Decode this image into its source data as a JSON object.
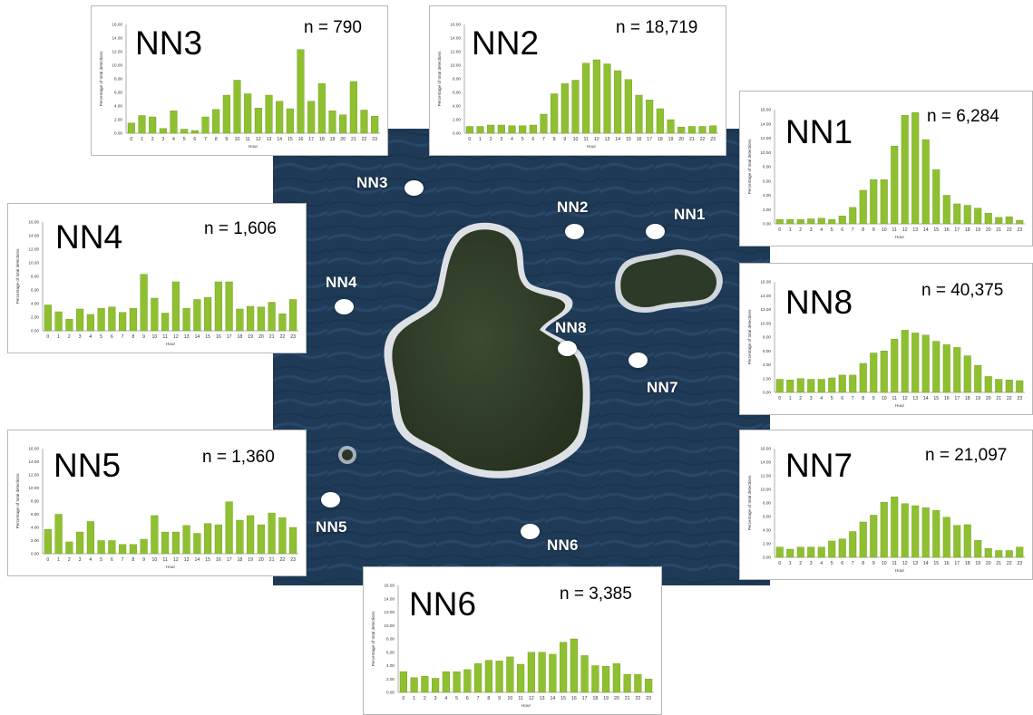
{
  "figure": {
    "sites": [
      {
        "id": "NN1",
        "label": "NN1"
      },
      {
        "id": "NN2",
        "label": "NN2"
      },
      {
        "id": "NN3",
        "label": "NN3"
      },
      {
        "id": "NN4",
        "label": "NN4"
      },
      {
        "id": "NN5",
        "label": "NN5"
      },
      {
        "id": "NN6",
        "label": "NN6"
      },
      {
        "id": "NN7",
        "label": "NN7"
      },
      {
        "id": "NN8",
        "label": "NN8"
      }
    ]
  },
  "colors": {
    "bar": "#8fc031",
    "bar_edge": "#6a9a14",
    "panel_border": "#b8b8b8"
  },
  "chart_data": [
    {
      "type": "bar",
      "title": "NN3",
      "n_label": "n = 790",
      "xlabel": "Hour",
      "ylabel": "Percentage of total detections",
      "ylim": [
        0,
        16
      ],
      "yticks": [
        "0.00",
        "2.00",
        "4.00",
        "6.00",
        "8.00",
        "10.00",
        "12.00",
        "14.00",
        "16.00"
      ],
      "categories": [
        "0",
        "1",
        "2",
        "3",
        "4",
        "5",
        "6",
        "7",
        "8",
        "9",
        "10",
        "11",
        "12",
        "13",
        "14",
        "15",
        "16",
        "17",
        "18",
        "19",
        "20",
        "21",
        "22",
        "23"
      ],
      "values": [
        1.5,
        2.6,
        2.4,
        0.7,
        3.3,
        0.6,
        0.4,
        2.4,
        3.5,
        5.6,
        7.8,
        5.8,
        3.7,
        5.6,
        4.7,
        3.6,
        12.3,
        4.7,
        7.3,
        3.3,
        2.7,
        7.6,
        3.4,
        2.5
      ]
    },
    {
      "type": "bar",
      "title": "NN2",
      "n_label": "n = 18,719",
      "xlabel": "Hour",
      "ylabel": "Percentage of total detections",
      "ylim": [
        0,
        16
      ],
      "yticks": [
        "0.00",
        "2.00",
        "4.00",
        "6.00",
        "8.00",
        "10.00",
        "12.00",
        "14.00",
        "16.00"
      ],
      "categories": [
        "0",
        "1",
        "2",
        "3",
        "4",
        "5",
        "6",
        "7",
        "8",
        "9",
        "10",
        "11",
        "12",
        "13",
        "14",
        "15",
        "16",
        "17",
        "18",
        "19",
        "20",
        "21",
        "22",
        "23"
      ],
      "values": [
        1.0,
        1.0,
        1.2,
        1.2,
        1.1,
        1.1,
        1.2,
        2.8,
        5.8,
        7.3,
        7.8,
        10.3,
        10.8,
        10.2,
        9.2,
        7.9,
        5.6,
        4.9,
        3.6,
        2.0,
        0.9,
        1.0,
        1.0,
        1.1
      ]
    },
    {
      "type": "bar",
      "title": "NN1",
      "n_label": "n = 6,284",
      "xlabel": "Hour",
      "ylabel": "Percentage of total detections",
      "ylim": [
        0,
        16
      ],
      "yticks": [
        "0.00",
        "2.00",
        "4.00",
        "6.00",
        "8.00",
        "10.00",
        "12.00",
        "14.00",
        "16.00"
      ],
      "categories": [
        "0",
        "1",
        "2",
        "3",
        "4",
        "5",
        "6",
        "7",
        "8",
        "9",
        "10",
        "11",
        "12",
        "13",
        "14",
        "15",
        "16",
        "17",
        "18",
        "19",
        "20",
        "21",
        "22",
        "23"
      ],
      "values": [
        0.6,
        0.6,
        0.6,
        0.7,
        0.8,
        0.6,
        1.1,
        2.3,
        4.7,
        6.2,
        6.2,
        10.9,
        15.2,
        15.6,
        11.8,
        7.6,
        4.0,
        2.8,
        2.6,
        2.2,
        1.5,
        0.9,
        1.0,
        0.5
      ]
    },
    {
      "type": "bar",
      "title": "NN4",
      "n_label": "n = 1,606",
      "xlabel": "Hour",
      "ylabel": "Percentage of total detections",
      "ylim": [
        0,
        16
      ],
      "yticks": [
        "0.00",
        "2.00",
        "4.00",
        "6.00",
        "8.00",
        "10.00",
        "12.00",
        "14.00",
        "16.00"
      ],
      "categories": [
        "0",
        "1",
        "2",
        "3",
        "4",
        "5",
        "6",
        "7",
        "8",
        "9",
        "10",
        "11",
        "12",
        "13",
        "14",
        "15",
        "16",
        "17",
        "18",
        "19",
        "20",
        "21",
        "22",
        "23"
      ],
      "values": [
        3.8,
        2.8,
        1.7,
        3.2,
        2.4,
        3.3,
        3.5,
        2.7,
        3.3,
        8.3,
        4.8,
        2.6,
        7.2,
        3.3,
        4.6,
        4.9,
        7.2,
        7.2,
        3.2,
        3.6,
        3.5,
        4.2,
        2.5,
        4.6
      ]
    },
    {
      "type": "bar",
      "title": "NN8",
      "n_label": "n = 40,375",
      "xlabel": "Hour",
      "ylabel": "Percentage of total detections",
      "ylim": [
        0,
        16
      ],
      "yticks": [
        "0.00",
        "2.00",
        "4.00",
        "6.00",
        "8.00",
        "10.00",
        "12.00",
        "14.00",
        "16.00"
      ],
      "categories": [
        "0",
        "1",
        "2",
        "3",
        "4",
        "5",
        "6",
        "7",
        "8",
        "9",
        "10",
        "11",
        "12",
        "13",
        "14",
        "15",
        "16",
        "17",
        "18",
        "19",
        "20",
        "21",
        "22",
        "23"
      ],
      "values": [
        1.9,
        1.8,
        2.0,
        1.9,
        1.9,
        2.1,
        2.5,
        2.5,
        4.2,
        5.7,
        6.0,
        7.7,
        9.0,
        8.6,
        8.3,
        7.4,
        6.9,
        6.5,
        5.3,
        3.9,
        2.3,
        1.9,
        1.8,
        1.7
      ]
    },
    {
      "type": "bar",
      "title": "NN5",
      "n_label": "n = 1,360",
      "xlabel": "Hour",
      "ylabel": "Percentage of total detections",
      "ylim": [
        0,
        16
      ],
      "yticks": [
        "0.00",
        "2.00",
        "4.00",
        "6.00",
        "8.00",
        "10.00",
        "12.00",
        "14.00",
        "16.00"
      ],
      "categories": [
        "0",
        "1",
        "2",
        "3",
        "4",
        "5",
        "6",
        "7",
        "8",
        "9",
        "10",
        "11",
        "12",
        "13",
        "14",
        "15",
        "16",
        "17",
        "18",
        "19",
        "20",
        "21",
        "22",
        "23"
      ],
      "values": [
        3.7,
        6.0,
        1.8,
        3.3,
        4.9,
        2.0,
        2.0,
        1.4,
        1.4,
        2.2,
        5.8,
        3.3,
        3.3,
        4.3,
        3.1,
        4.6,
        4.4,
        7.9,
        5.1,
        5.8,
        4.4,
        6.2,
        5.5,
        4.0
      ]
    },
    {
      "type": "bar",
      "title": "NN7",
      "n_label": "n = 21,097",
      "xlabel": "Hour",
      "ylabel": "Percentage of total detections",
      "ylim": [
        0,
        16
      ],
      "yticks": [
        "0.00",
        "2.00",
        "4.00",
        "6.00",
        "8.00",
        "10.00",
        "12.00",
        "14.00",
        "16.00"
      ],
      "categories": [
        "0",
        "1",
        "2",
        "3",
        "4",
        "5",
        "6",
        "7",
        "8",
        "9",
        "10",
        "11",
        "12",
        "13",
        "14",
        "15",
        "16",
        "17",
        "18",
        "19",
        "20",
        "21",
        "22",
        "23"
      ],
      "values": [
        1.5,
        1.2,
        1.5,
        1.5,
        1.5,
        2.4,
        2.7,
        3.8,
        5.2,
        6.2,
        8.1,
        8.9,
        7.9,
        7.6,
        7.3,
        6.9,
        5.9,
        4.7,
        4.8,
        2.5,
        1.3,
        1.0,
        1.0,
        1.5
      ]
    },
    {
      "type": "bar",
      "title": "NN6",
      "n_label": "n = 3,385",
      "xlabel": "Hour",
      "ylabel": "Percentage of total detections",
      "ylim": [
        0,
        16
      ],
      "yticks": [
        "0.00",
        "2.00",
        "4.00",
        "6.00",
        "8.00",
        "10.00",
        "12.00",
        "14.00",
        "16.00"
      ],
      "categories": [
        "0",
        "1",
        "2",
        "3",
        "4",
        "5",
        "6",
        "7",
        "8",
        "9",
        "10",
        "11",
        "12",
        "13",
        "14",
        "15",
        "16",
        "17",
        "18",
        "19",
        "20",
        "21",
        "22",
        "23"
      ],
      "values": [
        3.1,
        2.2,
        2.4,
        2.1,
        3.1,
        3.1,
        3.4,
        4.3,
        4.8,
        4.7,
        5.3,
        4.2,
        6.0,
        6.0,
        5.7,
        7.5,
        8.0,
        5.5,
        4.0,
        3.9,
        4.3,
        2.7,
        2.7,
        2.0
      ]
    }
  ]
}
